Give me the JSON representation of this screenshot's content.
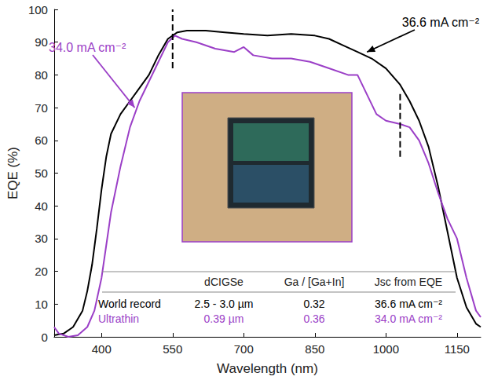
{
  "chart_data": {
    "type": "line",
    "x_label": "Wavelength (nm)",
    "y_label": "EQE (%)",
    "xlim": [
      300,
      1200
    ],
    "xticks": [
      400,
      550,
      700,
      850,
      1000,
      1150
    ],
    "ylim": [
      0,
      100
    ],
    "yticks": [
      0,
      10,
      20,
      30,
      40,
      50,
      60,
      70,
      80,
      90,
      100
    ],
    "grid": false,
    "series": [
      {
        "name": "World record",
        "color": "#000000",
        "line_style": "solid",
        "x": [
          300,
          320,
          340,
          360,
          370,
          380,
          390,
          400,
          410,
          420,
          440,
          460,
          480,
          500,
          520,
          540,
          560,
          580,
          620,
          660,
          700,
          750,
          800,
          850,
          880,
          910,
          940,
          970,
          1000,
          1030,
          1050,
          1070,
          1090,
          1110,
          1130,
          1150,
          1170,
          1190,
          1200
        ],
        "values": [
          0.5,
          1,
          3,
          8,
          14,
          22,
          33,
          45,
          55,
          62,
          68,
          72,
          76,
          80,
          86,
          91,
          93,
          93.5,
          93.5,
          93,
          92.5,
          92,
          92.5,
          92,
          91,
          89,
          87,
          85,
          82,
          77,
          72,
          66,
          58,
          46,
          32,
          18,
          9,
          4,
          3
        ]
      },
      {
        "name": "Ultrathin",
        "color": "#9b3fc7",
        "line_style": "solid",
        "x": [
          300,
          310,
          330,
          350,
          370,
          385,
          400,
          410,
          420,
          440,
          460,
          480,
          500,
          520,
          540,
          555,
          570,
          600,
          640,
          680,
          700,
          720,
          760,
          800,
          840,
          880,
          920,
          940,
          960,
          980,
          1000,
          1030,
          1050,
          1070,
          1090,
          1110,
          1130,
          1150,
          1170,
          1190,
          1200
        ],
        "values": [
          3,
          1,
          0,
          0.5,
          3,
          8,
          18,
          28,
          38,
          52,
          64,
          72,
          78,
          84,
          90,
          92,
          91,
          90,
          88,
          87,
          88.5,
          86,
          85,
          85,
          84,
          82,
          80,
          80,
          74,
          68,
          66,
          65,
          64,
          60,
          53,
          44,
          36,
          30,
          18,
          8,
          6
        ]
      }
    ],
    "dashed_lines": [
      {
        "x": 550,
        "y": [
          82,
          100
        ],
        "color": "#000000",
        "line_style": "dashed"
      },
      {
        "x": 1030,
        "y": [
          55,
          75
        ],
        "color": "#000000",
        "line_style": "dashed"
      }
    ],
    "annotations": [
      {
        "text": "34.0 mA cm⁻²",
        "color": "#9b3fc7",
        "x": 470,
        "y": 70
      },
      {
        "text": "36.6 mA cm⁻²",
        "color": "#000000",
        "x": 960,
        "y": 87
      }
    ],
    "table": {
      "header": [
        "dCIGSe",
        "Ga / [Ga+In]",
        "Jsc from EQE"
      ],
      "rows": [
        {
          "label": "World record",
          "color": "#000000",
          "cells": [
            "2.5 - 3.0 µm",
            "0.32",
            "36.6 mA cm⁻²"
          ]
        },
        {
          "label": "Ultrathin",
          "color": "#9b3fc7",
          "cells": [
            "0.39 µm",
            "0.36",
            "34.0 mA cm⁻²"
          ]
        }
      ]
    }
  }
}
